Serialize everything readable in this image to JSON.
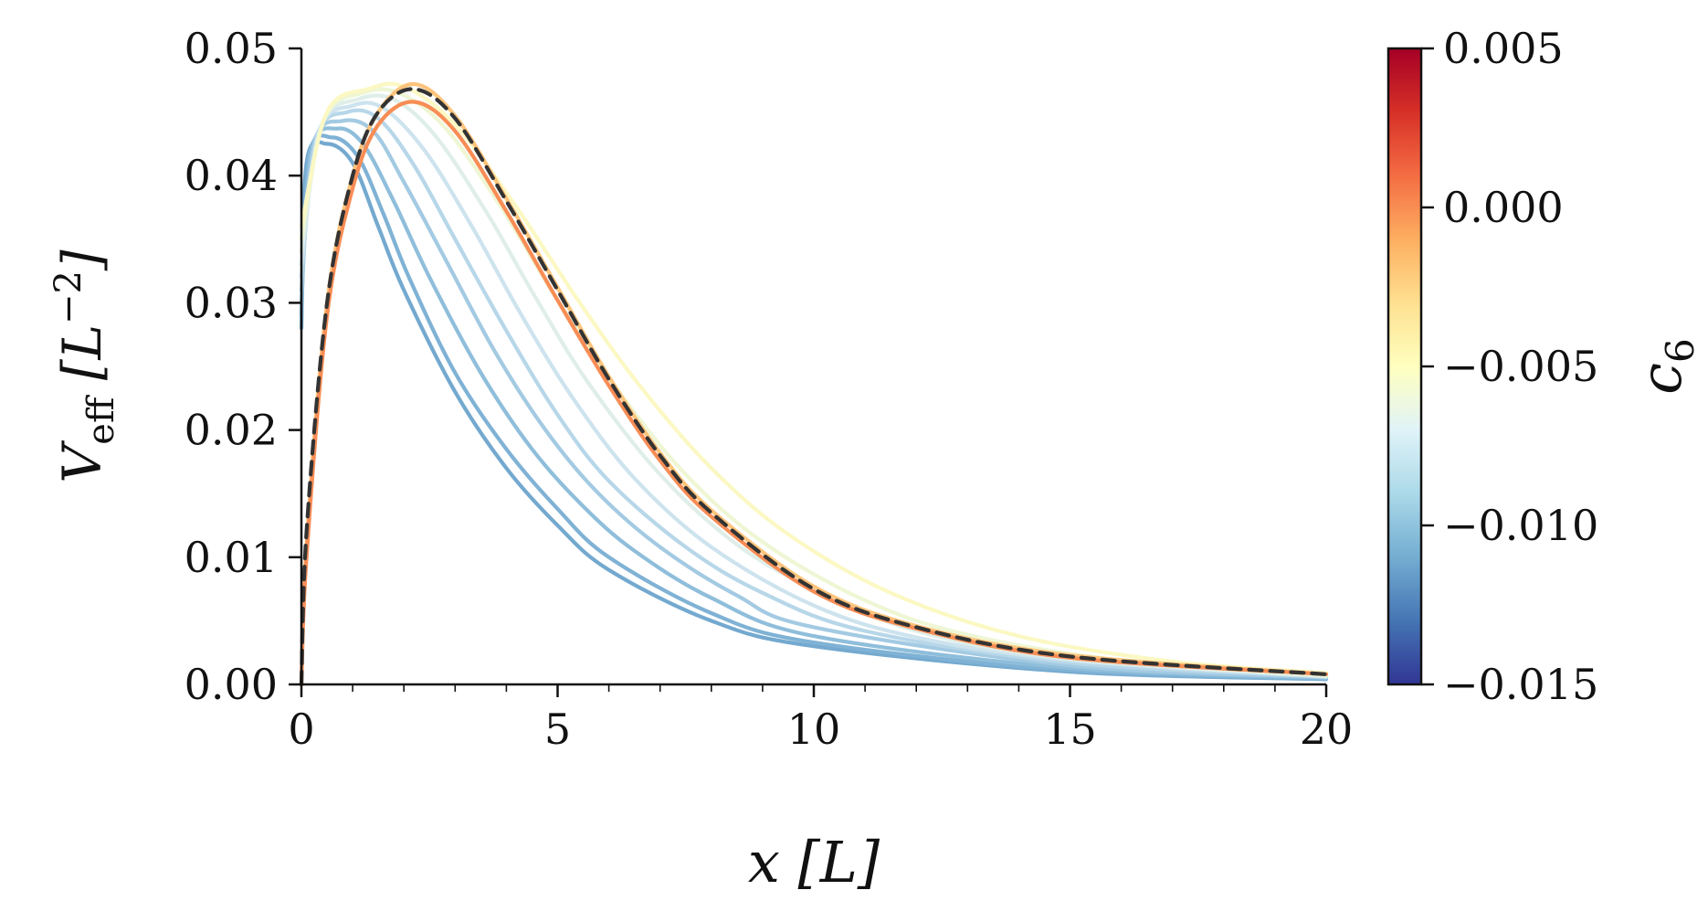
{
  "chart_data": {
    "type": "line",
    "xlabel": "x [L]",
    "ylabel": "V_eff [L^-2]",
    "xlim": [
      0,
      20
    ],
    "ylim": [
      0,
      0.05
    ],
    "xticks": [
      "0",
      "5",
      "10",
      "15",
      "20"
    ],
    "yticks": [
      "0.00",
      "0.01",
      "0.02",
      "0.03",
      "0.04",
      "0.05"
    ],
    "grid": false,
    "legend": "none",
    "colorbar": {
      "label": "c_6",
      "range": [
        -0.015,
        0.005
      ],
      "ticks": [
        "0.005",
        "0.000",
        "−0.005",
        "−0.010",
        "−0.015"
      ],
      "colormap": "RdYlBu_r"
    },
    "reference_curve": {
      "style": "dashed",
      "color": "#333333",
      "points": [
        [
          0,
          0.0
        ],
        [
          0.1,
          0.012
        ],
        [
          0.5,
          0.03
        ],
        [
          1,
          0.04
        ],
        [
          1.5,
          0.045
        ],
        [
          2.2,
          0.0468
        ],
        [
          3,
          0.0445
        ],
        [
          4,
          0.038
        ],
        [
          5,
          0.031
        ],
        [
          6,
          0.024
        ],
        [
          7,
          0.018
        ],
        [
          8,
          0.0135
        ],
        [
          10,
          0.0075
        ],
        [
          12,
          0.0045
        ],
        [
          15,
          0.0022
        ],
        [
          20,
          0.0008
        ]
      ]
    },
    "series": [
      {
        "c6": -0.0105,
        "color": "#74a9cf",
        "points": [
          [
            0,
            0.028
          ],
          [
            0.1,
            0.041
          ],
          [
            0.5,
            0.0425
          ],
          [
            1,
            0.041
          ],
          [
            1.5,
            0.036
          ],
          [
            2,
            0.031
          ],
          [
            3,
            0.023
          ],
          [
            4,
            0.017
          ],
          [
            5,
            0.0125
          ],
          [
            6,
            0.009
          ],
          [
            8,
            0.005
          ],
          [
            10,
            0.003
          ],
          [
            15,
            0.001
          ],
          [
            20,
            0.0004
          ]
        ]
      },
      {
        "c6": -0.0098,
        "color": "#7fb2d5",
        "points": [
          [
            0,
            0.029
          ],
          [
            0.15,
            0.0415
          ],
          [
            0.6,
            0.043
          ],
          [
            1.1,
            0.0415
          ],
          [
            1.6,
            0.037
          ],
          [
            2.1,
            0.032
          ],
          [
            3,
            0.0245
          ],
          [
            4,
            0.0185
          ],
          [
            5,
            0.0138
          ],
          [
            6,
            0.01
          ],
          [
            8,
            0.0056
          ],
          [
            10,
            0.0033
          ],
          [
            15,
            0.0011
          ],
          [
            20,
            0.00045
          ]
        ]
      },
      {
        "c6": -0.009,
        "color": "#8fbedb",
        "points": [
          [
            0,
            0.03
          ],
          [
            0.2,
            0.042
          ],
          [
            0.7,
            0.0437
          ],
          [
            1.2,
            0.0425
          ],
          [
            1.8,
            0.038
          ],
          [
            2.5,
            0.032
          ],
          [
            3.5,
            0.0245
          ],
          [
            4.5,
            0.0185
          ],
          [
            5.5,
            0.014
          ],
          [
            6.5,
            0.0105
          ],
          [
            8,
            0.0068
          ],
          [
            10,
            0.0038
          ],
          [
            15,
            0.0013
          ],
          [
            20,
            0.0005
          ]
        ]
      },
      {
        "c6": -0.0083,
        "color": "#a3cae2",
        "points": [
          [
            0,
            0.031
          ],
          [
            0.25,
            0.0425
          ],
          [
            0.8,
            0.0443
          ],
          [
            1.4,
            0.0435
          ],
          [
            2,
            0.0395
          ],
          [
            2.8,
            0.0335
          ],
          [
            3.8,
            0.026
          ],
          [
            4.8,
            0.0198
          ],
          [
            5.8,
            0.015
          ],
          [
            7,
            0.0108
          ],
          [
            8.5,
            0.007
          ],
          [
            10,
            0.0045
          ],
          [
            15,
            0.0015
          ],
          [
            20,
            0.00055
          ]
        ]
      },
      {
        "c6": -0.0075,
        "color": "#b7d7e9",
        "points": [
          [
            0,
            0.032
          ],
          [
            0.3,
            0.043
          ],
          [
            0.9,
            0.045
          ],
          [
            1.5,
            0.0445
          ],
          [
            2.2,
            0.0408
          ],
          [
            3,
            0.035
          ],
          [
            4,
            0.0278
          ],
          [
            5,
            0.0212
          ],
          [
            6,
            0.016
          ],
          [
            7.5,
            0.0108
          ],
          [
            9,
            0.0072
          ],
          [
            11,
            0.0042
          ],
          [
            15,
            0.0017
          ],
          [
            20,
            0.0006
          ]
        ]
      },
      {
        "c6": -0.0068,
        "color": "#cde3ee",
        "points": [
          [
            0,
            0.033
          ],
          [
            0.35,
            0.0435
          ],
          [
            1,
            0.0455
          ],
          [
            1.6,
            0.0453
          ],
          [
            2.4,
            0.042
          ],
          [
            3.3,
            0.0362
          ],
          [
            4.3,
            0.029
          ],
          [
            5.3,
            0.0225
          ],
          [
            6.5,
            0.0162
          ],
          [
            8,
            0.0108
          ],
          [
            10,
            0.0062
          ],
          [
            12,
            0.0037
          ],
          [
            15,
            0.0019
          ],
          [
            20,
            0.0006
          ]
        ]
      },
      {
        "c6": -0.006,
        "color": "#dfeee8",
        "points": [
          [
            0,
            0.034
          ],
          [
            0.4,
            0.044
          ],
          [
            1.1,
            0.046
          ],
          [
            1.8,
            0.046
          ],
          [
            2.6,
            0.0432
          ],
          [
            3.6,
            0.0372
          ],
          [
            4.6,
            0.0302
          ],
          [
            5.6,
            0.0237
          ],
          [
            7,
            0.0165
          ],
          [
            8.5,
            0.011
          ],
          [
            10,
            0.0075
          ],
          [
            12,
            0.0042
          ],
          [
            15,
            0.002
          ],
          [
            20,
            0.00065
          ]
        ]
      },
      {
        "c6": -0.0053,
        "color": "#eef6d4",
        "points": [
          [
            0,
            0.035
          ],
          [
            0.45,
            0.0445
          ],
          [
            1.2,
            0.0465
          ],
          [
            1.9,
            0.0465
          ],
          [
            2.8,
            0.0438
          ],
          [
            3.9,
            0.0375
          ],
          [
            5,
            0.0302
          ],
          [
            6.2,
            0.023
          ],
          [
            7.5,
            0.0165
          ],
          [
            9,
            0.0112
          ],
          [
            11,
            0.0066
          ],
          [
            13,
            0.0039
          ],
          [
            16,
            0.0019
          ],
          [
            20,
            0.0007
          ]
        ]
      },
      {
        "c6": -0.0045,
        "color": "#fbf8c3",
        "points": [
          [
            0,
            0.036
          ],
          [
            0.5,
            0.045
          ],
          [
            1.3,
            0.0468
          ],
          [
            2,
            0.047
          ],
          [
            3,
            0.044
          ],
          [
            4.2,
            0.0375
          ],
          [
            5.4,
            0.0302
          ],
          [
            6.6,
            0.0235
          ],
          [
            8,
            0.017
          ],
          [
            9.5,
            0.0118
          ],
          [
            11.5,
            0.0072
          ],
          [
            14,
            0.0038
          ],
          [
            17,
            0.0018
          ],
          [
            20,
            0.0009
          ]
        ]
      },
      {
        "c6": -0.0015,
        "color": "#fdc47b",
        "points": [
          [
            0,
            0.0
          ],
          [
            0.1,
            0.011
          ],
          [
            0.5,
            0.03
          ],
          [
            1,
            0.04
          ],
          [
            1.5,
            0.045
          ],
          [
            2.2,
            0.0472
          ],
          [
            3,
            0.0447
          ],
          [
            4,
            0.0382
          ],
          [
            5,
            0.0312
          ],
          [
            6,
            0.0242
          ],
          [
            7,
            0.0182
          ],
          [
            8,
            0.0137
          ],
          [
            10,
            0.0077
          ],
          [
            12,
            0.0046
          ],
          [
            15,
            0.0023
          ],
          [
            20,
            0.0008
          ]
        ]
      },
      {
        "c6": -0.0005,
        "color": "#f88d55",
        "points": [
          [
            0,
            0.0
          ],
          [
            0.1,
            0.01
          ],
          [
            0.5,
            0.029
          ],
          [
            1,
            0.039
          ],
          [
            1.5,
            0.044
          ],
          [
            2.2,
            0.0458
          ],
          [
            3,
            0.0435
          ],
          [
            4,
            0.0372
          ],
          [
            5,
            0.0302
          ],
          [
            6,
            0.0235
          ],
          [
            7,
            0.0176
          ],
          [
            8,
            0.0132
          ],
          [
            10,
            0.0073
          ],
          [
            12,
            0.0044
          ],
          [
            15,
            0.0021
          ],
          [
            20,
            0.0008
          ]
        ]
      }
    ]
  }
}
